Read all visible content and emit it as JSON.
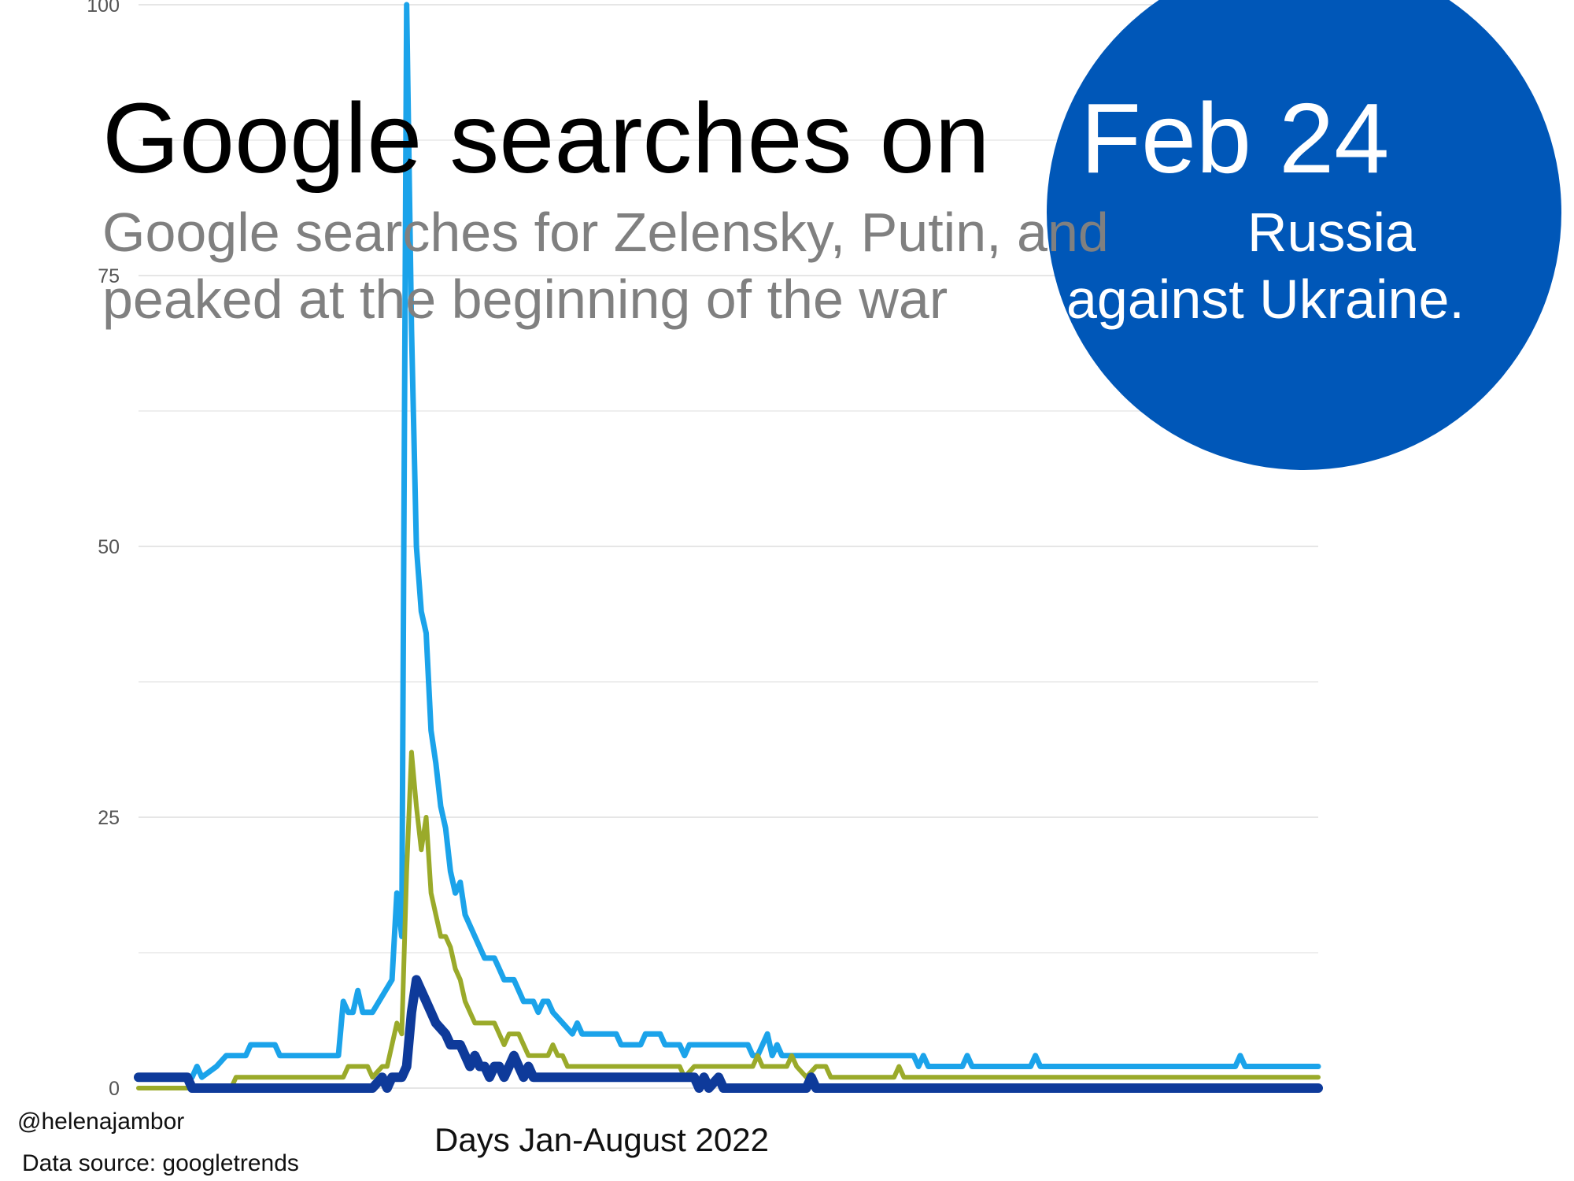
{
  "title": {
    "prefix": "Google searches on",
    "highlight": "Feb 24"
  },
  "subtitle": {
    "line1_grey": "Google searches for Zelensky, Putin, and",
    "line1_white": "Russia",
    "line2_grey": "peaked at the beginning of the war",
    "line2_white": "against Ukraine."
  },
  "credit": "@helenajambor",
  "source": "Data source: googletrends",
  "colors": {
    "highlight_circle": "#0057b8",
    "grid": "#dddddd"
  },
  "chart_data": {
    "type": "line",
    "title": "",
    "xlabel": "Days Jan-August 2022",
    "ylabel": "",
    "ylim": [
      0,
      100
    ],
    "yticks": [
      0,
      25,
      50,
      75,
      100
    ],
    "xlim": [
      1,
      243
    ],
    "grid": true,
    "legend": "none",
    "series": [
      {
        "color": "#1ba3ea",
        "points": [
          [
            1,
            1
          ],
          [
            12,
            1
          ],
          [
            13,
            2
          ],
          [
            14,
            1
          ],
          [
            17,
            2
          ],
          [
            19,
            3
          ],
          [
            23,
            3
          ],
          [
            24,
            4
          ],
          [
            29,
            4
          ],
          [
            30,
            3
          ],
          [
            42,
            3
          ],
          [
            43,
            8
          ],
          [
            44,
            7
          ],
          [
            45,
            7
          ],
          [
            46,
            9
          ],
          [
            47,
            7
          ],
          [
            49,
            7
          ],
          [
            53,
            10
          ],
          [
            54,
            18
          ],
          [
            55,
            14
          ],
          [
            56,
            100
          ],
          [
            57,
            70
          ],
          [
            58,
            50
          ],
          [
            59,
            44
          ],
          [
            60,
            42
          ],
          [
            61,
            33
          ],
          [
            62,
            30
          ],
          [
            63,
            26
          ],
          [
            64,
            24
          ],
          [
            65,
            20
          ],
          [
            66,
            18
          ],
          [
            67,
            19
          ],
          [
            68,
            16
          ],
          [
            70,
            14
          ],
          [
            72,
            12
          ],
          [
            74,
            12
          ],
          [
            75,
            11
          ],
          [
            76,
            10
          ],
          [
            78,
            10
          ],
          [
            80,
            8
          ],
          [
            82,
            8
          ],
          [
            83,
            7
          ],
          [
            84,
            8
          ],
          [
            85,
            8
          ],
          [
            86,
            7
          ],
          [
            88,
            6
          ],
          [
            90,
            5
          ],
          [
            91,
            6
          ],
          [
            92,
            5
          ],
          [
            99,
            5
          ],
          [
            100,
            4
          ],
          [
            104,
            4
          ],
          [
            105,
            5
          ],
          [
            108,
            5
          ],
          [
            109,
            4
          ],
          [
            112,
            4
          ],
          [
            113,
            3
          ],
          [
            114,
            4
          ],
          [
            126,
            4
          ],
          [
            127,
            3
          ],
          [
            128,
            3
          ],
          [
            130,
            5
          ],
          [
            131,
            3
          ],
          [
            132,
            4
          ],
          [
            133,
            3
          ],
          [
            160,
            3
          ],
          [
            161,
            2
          ],
          [
            162,
            3
          ],
          [
            163,
            2
          ],
          [
            170,
            2
          ],
          [
            171,
            3
          ],
          [
            172,
            2
          ],
          [
            184,
            2
          ],
          [
            185,
            3
          ],
          [
            186,
            2
          ],
          [
            226,
            2
          ],
          [
            227,
            3
          ],
          [
            228,
            2
          ],
          [
            243,
            2
          ]
        ]
      },
      {
        "color": "#9aaa2a",
        "points": [
          [
            1,
            0
          ],
          [
            20,
            0
          ],
          [
            21,
            1
          ],
          [
            43,
            1
          ],
          [
            44,
            2
          ],
          [
            48,
            2
          ],
          [
            49,
            1
          ],
          [
            51,
            2
          ],
          [
            52,
            2
          ],
          [
            54,
            6
          ],
          [
            55,
            5
          ],
          [
            56,
            20
          ],
          [
            57,
            31
          ],
          [
            58,
            26
          ],
          [
            59,
            22
          ],
          [
            60,
            25
          ],
          [
            61,
            18
          ],
          [
            62,
            16
          ],
          [
            63,
            14
          ],
          [
            64,
            14
          ],
          [
            65,
            13
          ],
          [
            66,
            11
          ],
          [
            67,
            10
          ],
          [
            68,
            8
          ],
          [
            69,
            7
          ],
          [
            70,
            6
          ],
          [
            74,
            6
          ],
          [
            75,
            5
          ],
          [
            76,
            4
          ],
          [
            77,
            5
          ],
          [
            79,
            5
          ],
          [
            80,
            4
          ],
          [
            81,
            3
          ],
          [
            85,
            3
          ],
          [
            86,
            4
          ],
          [
            87,
            3
          ],
          [
            88,
            3
          ],
          [
            89,
            2
          ],
          [
            112,
            2
          ],
          [
            113,
            1
          ],
          [
            115,
            2
          ],
          [
            127,
            2
          ],
          [
            128,
            3
          ],
          [
            129,
            2
          ],
          [
            134,
            2
          ],
          [
            135,
            3
          ],
          [
            136,
            2
          ],
          [
            138,
            1
          ],
          [
            140,
            2
          ],
          [
            142,
            2
          ],
          [
            143,
            1
          ],
          [
            156,
            1
          ],
          [
            157,
            2
          ],
          [
            158,
            1
          ],
          [
            243,
            1
          ]
        ]
      },
      {
        "color": "#0e3a9a",
        "points": [
          [
            1,
            1
          ],
          [
            10,
            1
          ],
          [
            11,
            1
          ],
          [
            12,
            0
          ],
          [
            49,
            0
          ],
          [
            51,
            1
          ],
          [
            52,
            0
          ],
          [
            53,
            1
          ],
          [
            55,
            1
          ],
          [
            56,
            2
          ],
          [
            57,
            7
          ],
          [
            58,
            10
          ],
          [
            59,
            9
          ],
          [
            60,
            8
          ],
          [
            61,
            7
          ],
          [
            62,
            6
          ],
          [
            64,
            5
          ],
          [
            65,
            4
          ],
          [
            67,
            4
          ],
          [
            68,
            3
          ],
          [
            69,
            2
          ],
          [
            70,
            3
          ],
          [
            71,
            2
          ],
          [
            72,
            2
          ],
          [
            73,
            1
          ],
          [
            74,
            2
          ],
          [
            75,
            2
          ],
          [
            76,
            1
          ],
          [
            77,
            2
          ],
          [
            78,
            3
          ],
          [
            79,
            2
          ],
          [
            80,
            1
          ],
          [
            81,
            2
          ],
          [
            82,
            1
          ],
          [
            115,
            1
          ],
          [
            116,
            0
          ],
          [
            117,
            1
          ],
          [
            118,
            0
          ],
          [
            120,
            1
          ],
          [
            121,
            0
          ],
          [
            138,
            0
          ],
          [
            139,
            1
          ],
          [
            140,
            0
          ],
          [
            243,
            0
          ]
        ]
      }
    ]
  }
}
